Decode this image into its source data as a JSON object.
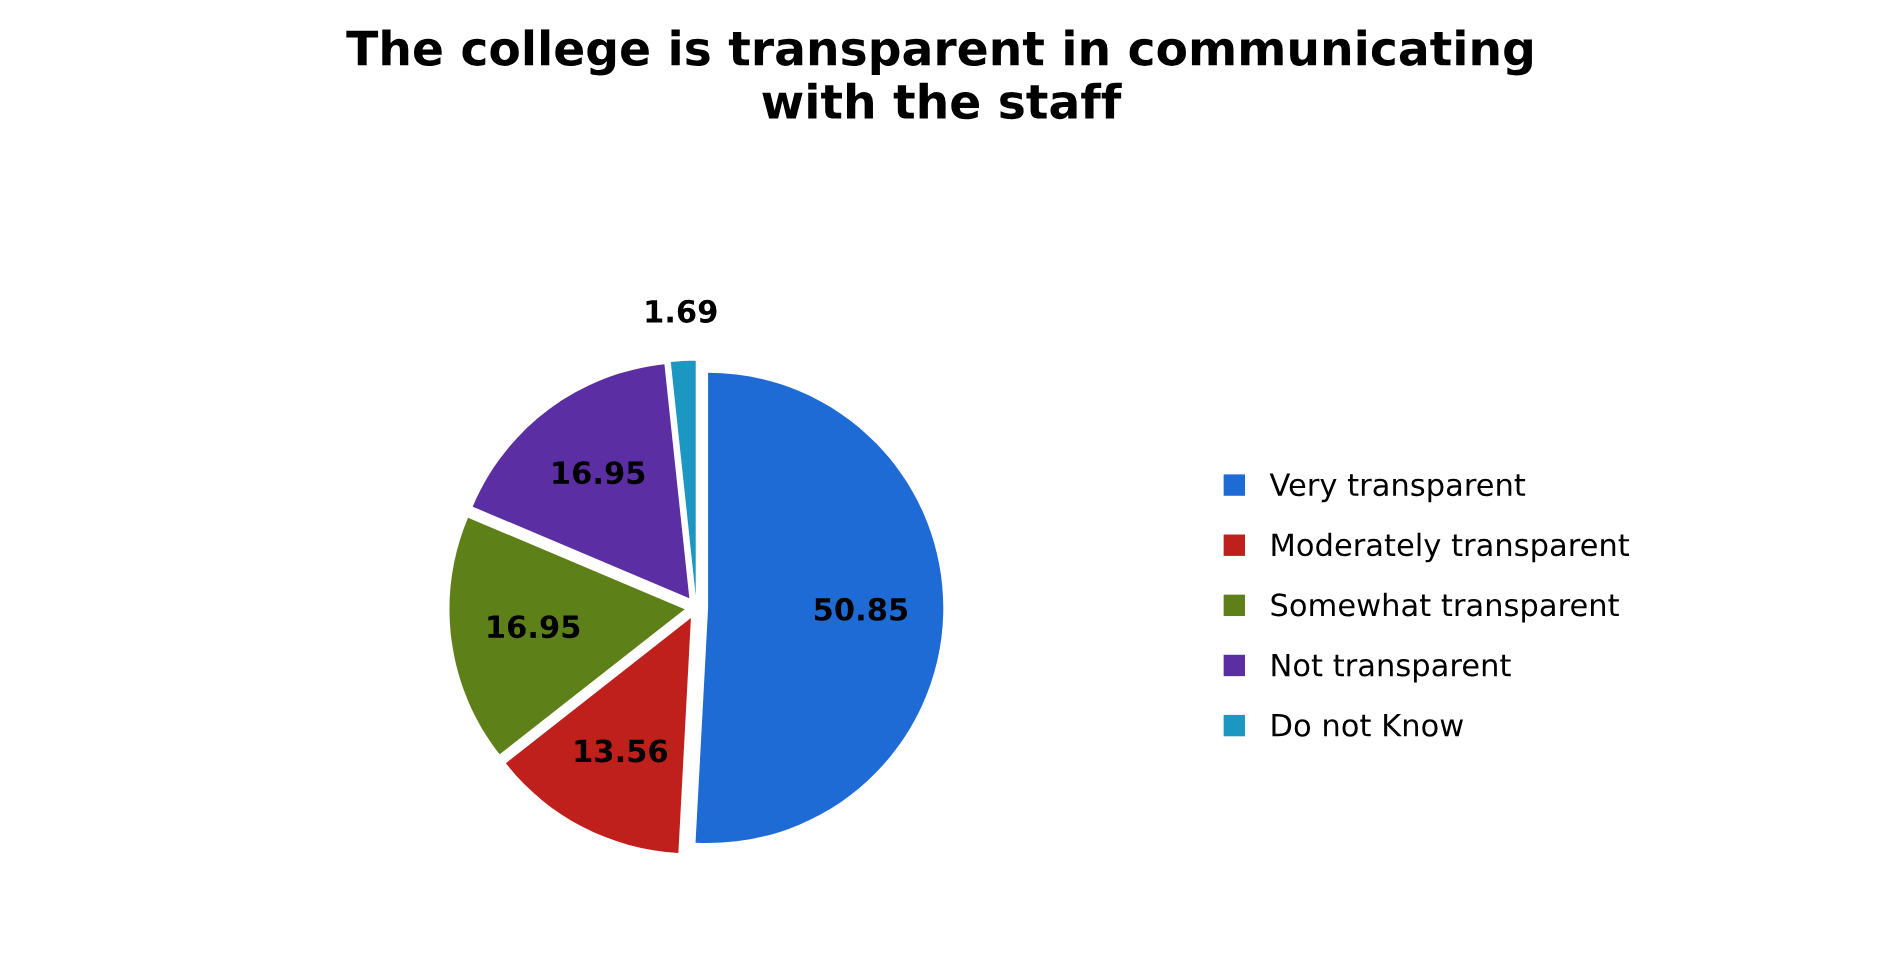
{
  "chart_data": {
    "type": "pie",
    "title": "The college is transparent in communicating\nwith the staff",
    "categories": [
      "Very transparent",
      "Moderately transparent",
      "Somewhat transparent",
      "Not transparent",
      "Do not Know"
    ],
    "values": [
      50.85,
      13.56,
      16.95,
      16.95,
      1.69
    ],
    "colors": [
      "#1f6bd6",
      "#c0201c",
      "#5e8019",
      "#5b2fa3",
      "#1b97c2"
    ],
    "data_labels": true,
    "legend": "right"
  }
}
